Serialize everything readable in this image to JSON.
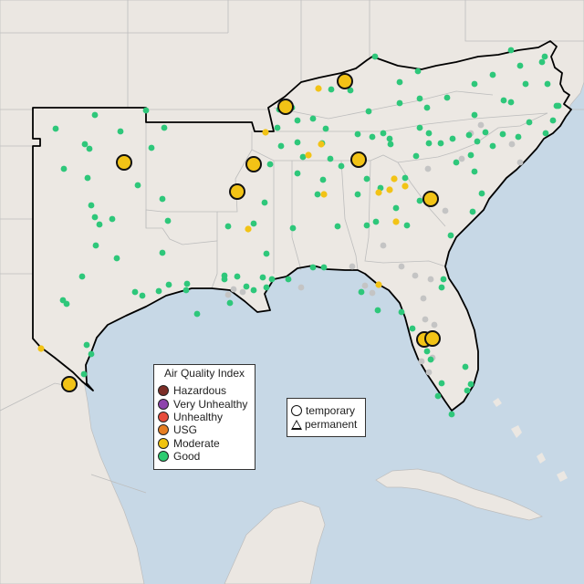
{
  "colors": {
    "water": "#c7d8e6",
    "land": "#ebe7e2",
    "region": "#ece8e3",
    "boundary_line": "#bdbdbd",
    "region_outline": "#000000",
    "good": "#2ec77a",
    "moderate": "#f2c316",
    "unknown": "#c4c4c4"
  },
  "legend": {
    "title": "Air Quality Index",
    "items": [
      {
        "label": "Hazardous",
        "color": "#7b2d26"
      },
      {
        "label": "Very Unhealthy",
        "color": "#8e44ad"
      },
      {
        "label": "Unhealthy",
        "color": "#e74c3c"
      },
      {
        "label": "USG",
        "color": "#e67e22"
      },
      {
        "label": "Moderate",
        "color": "#f1c40f"
      },
      {
        "label": "Good",
        "color": "#2ecc71"
      }
    ]
  },
  "monitor_types": {
    "temporary_label": "temporary",
    "permanent_label": "permanent",
    "temporary_icon": "circle-outline-icon",
    "permanent_icon": "triangle-outline-icon"
  }
}
